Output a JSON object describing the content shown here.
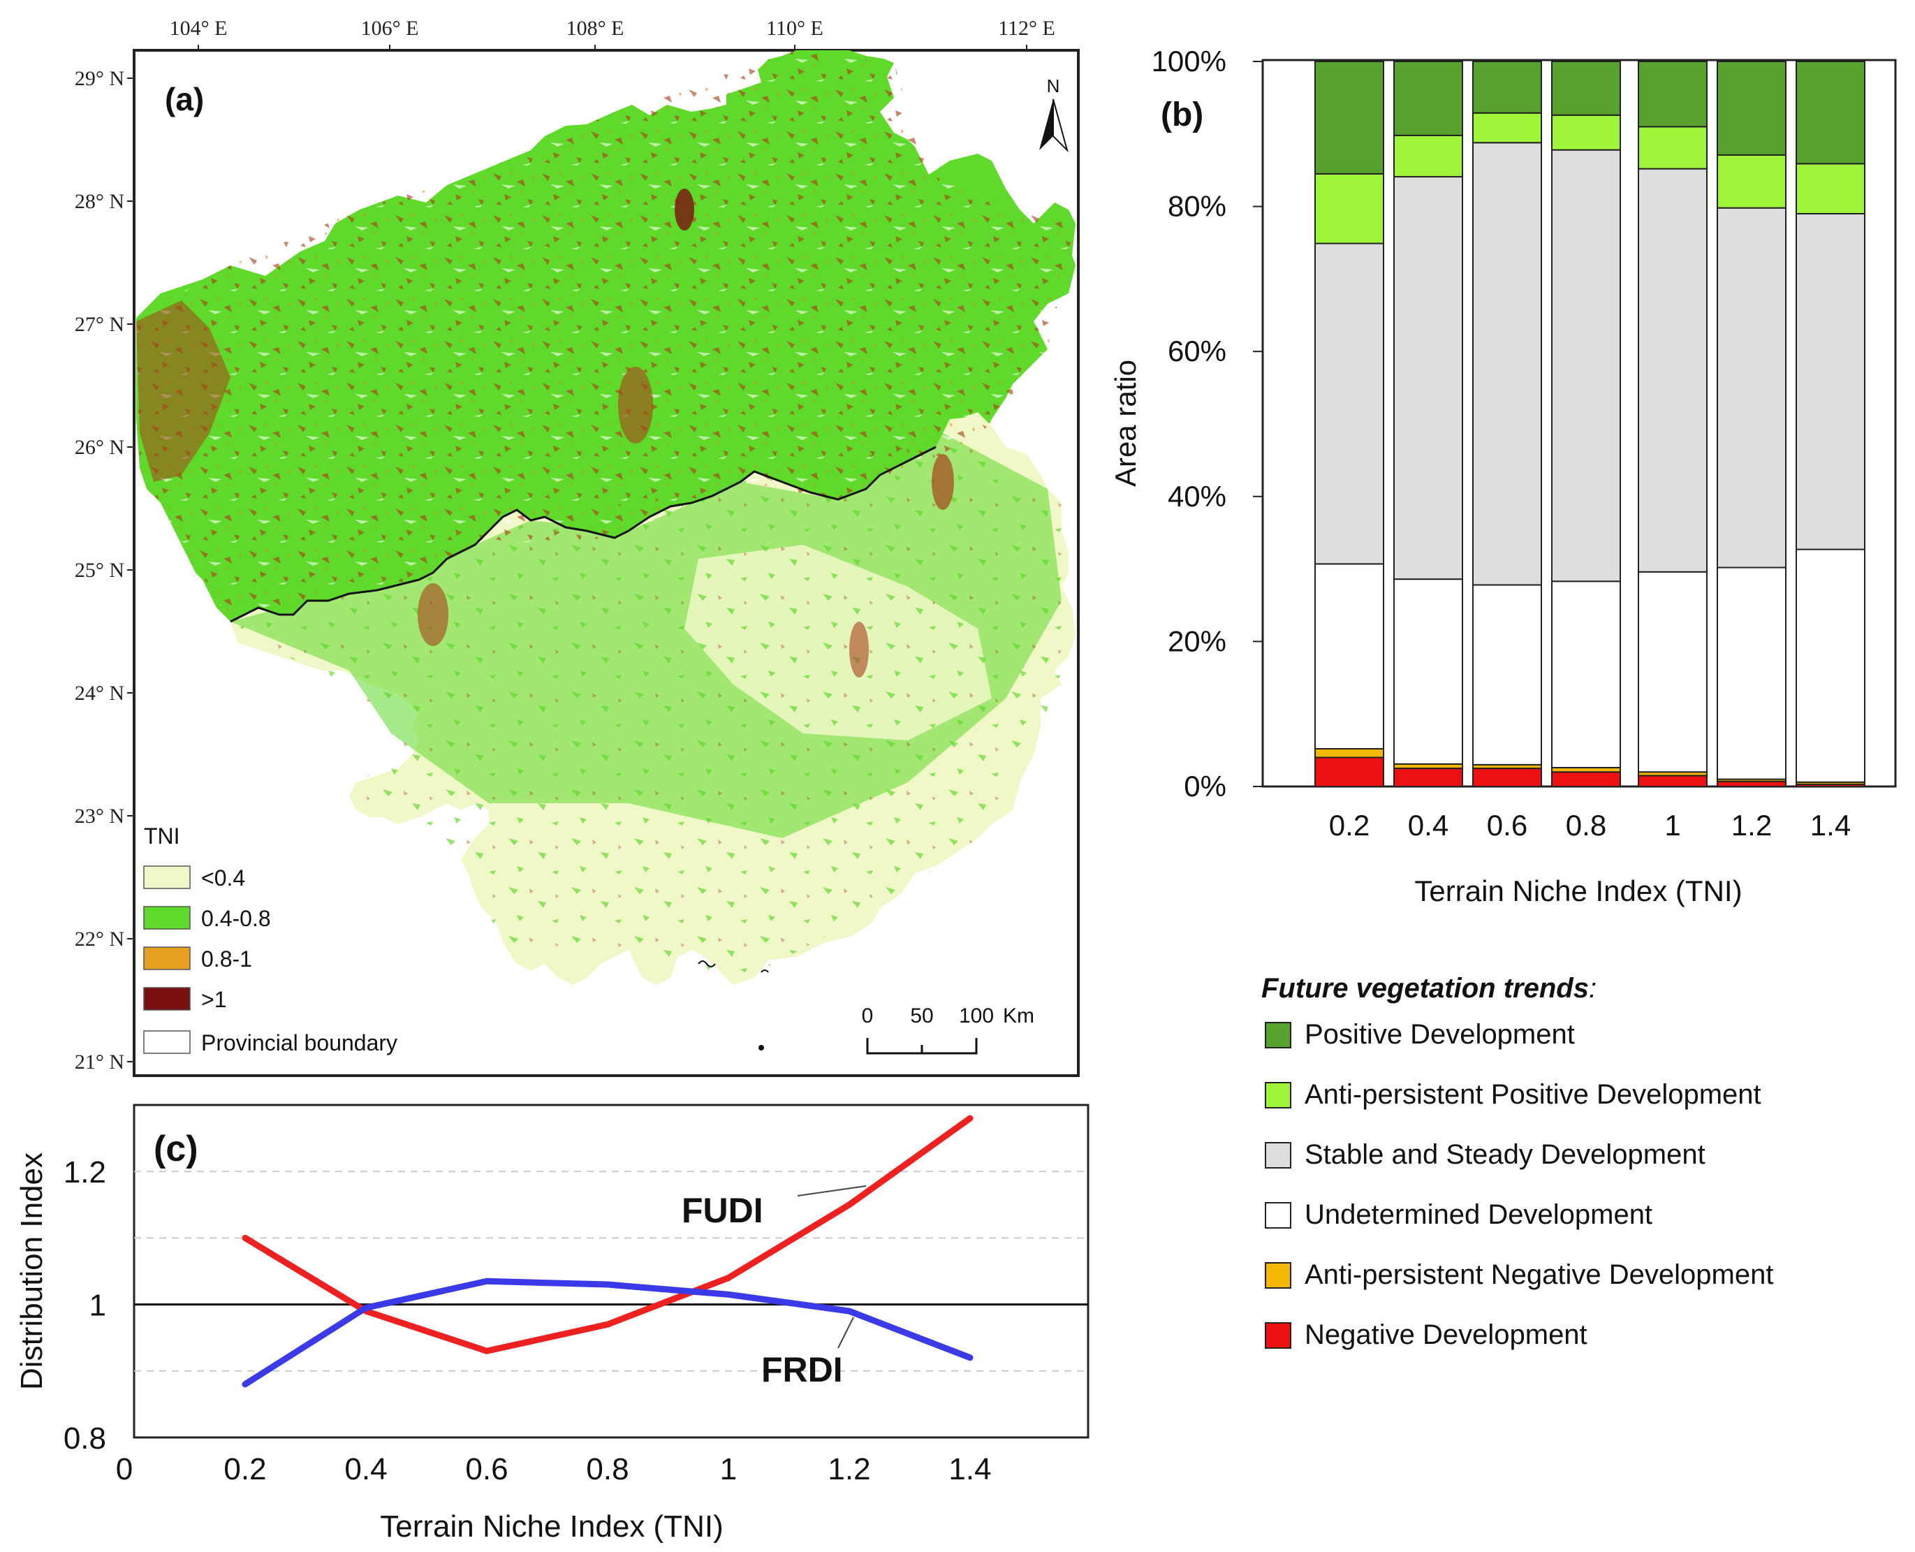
{
  "panel_a": {
    "label": "(a)",
    "lon_ticks": [
      "104° E",
      "106° E",
      "108° E",
      "110° E",
      "112° E"
    ],
    "lat_ticks": [
      "29° N",
      "28° N",
      "27° N",
      "26° N",
      "25° N",
      "24° N",
      "23° N",
      "22° N",
      "21° N"
    ],
    "north_label": "N",
    "legend": {
      "title": "TNI",
      "items": [
        {
          "label": "<0.4",
          "color": "#f1f8c8"
        },
        {
          "label": "0.4-0.8",
          "color": "#5fd92a"
        },
        {
          "label": "0.8-1",
          "color": "#e8a020"
        },
        {
          "label": ">1",
          "color": "#7a1010"
        }
      ],
      "boundary_label": "Provincial boundary"
    },
    "scale_labels": [
      "0",
      "50",
      "100",
      "Km"
    ]
  },
  "panel_b": {
    "label": "(b)",
    "legend_title": "Future vegetation trends",
    "legend_colon": ":"
  },
  "panel_c": {
    "label": "(c)",
    "annotations": [
      "FUDI",
      "FRDI"
    ]
  },
  "chart_data": [
    {
      "type": "bar",
      "stacked": true,
      "panel": "b",
      "title": "",
      "xlabel": "Terrain Niche Index (TNI)",
      "ylabel": "Area ratio",
      "ylim": [
        0,
        100
      ],
      "ytick_labels": [
        "0%",
        "20%",
        "40%",
        "60%",
        "80%",
        "100%"
      ],
      "categories": [
        "0.2",
        "0.4",
        "0.6",
        "0.8",
        "1",
        "1.2",
        "1.4"
      ],
      "series": [
        {
          "name": "Negative Development",
          "color": "#ee1111",
          "values": [
            4,
            2.5,
            2.5,
            2,
            1.5,
            0.7,
            0.3
          ]
        },
        {
          "name": "Anti-persistent Negative Development",
          "color": "#f5b800",
          "values": [
            1.2,
            0.6,
            0.5,
            0.6,
            0.5,
            0.3,
            0.3
          ]
        },
        {
          "name": "Undetermined Development",
          "color": "#ffffff",
          "values": [
            25.5,
            25.5,
            24.8,
            25.7,
            27.6,
            29.2,
            32.1
          ]
        },
        {
          "name": "Stable and Steady Development",
          "color": "#dedede",
          "values": [
            44.2,
            55.5,
            61,
            59.5,
            55.6,
            49.6,
            46.3
          ]
        },
        {
          "name": "Anti-persistent Positive Development",
          "color": "#9ef53a",
          "values": [
            9.6,
            5.7,
            4.1,
            4.8,
            5.8,
            7.3,
            6.9
          ]
        },
        {
          "name": "Positive Development",
          "color": "#57a22c",
          "values": [
            15.5,
            10.2,
            7.1,
            7.4,
            9,
            12.9,
            14.1
          ]
        }
      ]
    },
    {
      "type": "line",
      "panel": "c",
      "title": "",
      "xlabel": "Terrain Niche Index (TNI)",
      "ylabel": "Distribution Index",
      "xlim": [
        0,
        1.6
      ],
      "ylim": [
        0.8,
        1.3
      ],
      "xtick_labels": [
        "0",
        "0.2",
        "0.4",
        "0.6",
        "0.8",
        "1",
        "1.2",
        "1.4"
      ],
      "ytick_labels": [
        "0.8",
        "1",
        "1.2"
      ],
      "reference_line": 1,
      "series": [
        {
          "name": "FUDI",
          "color": "#ee2020",
          "x": [
            0.2,
            0.4,
            0.6,
            0.8,
            1.0,
            1.2,
            1.4
          ],
          "y": [
            1.1,
            0.99,
            0.93,
            0.97,
            1.04,
            1.15,
            1.28
          ]
        },
        {
          "name": "FRDI",
          "color": "#3a3ae8",
          "x": [
            0.2,
            0.4,
            0.6,
            0.8,
            1.0,
            1.2,
            1.4
          ],
          "y": [
            0.88,
            0.995,
            1.035,
            1.03,
            1.015,
            0.99,
            0.92
          ]
        }
      ]
    }
  ]
}
